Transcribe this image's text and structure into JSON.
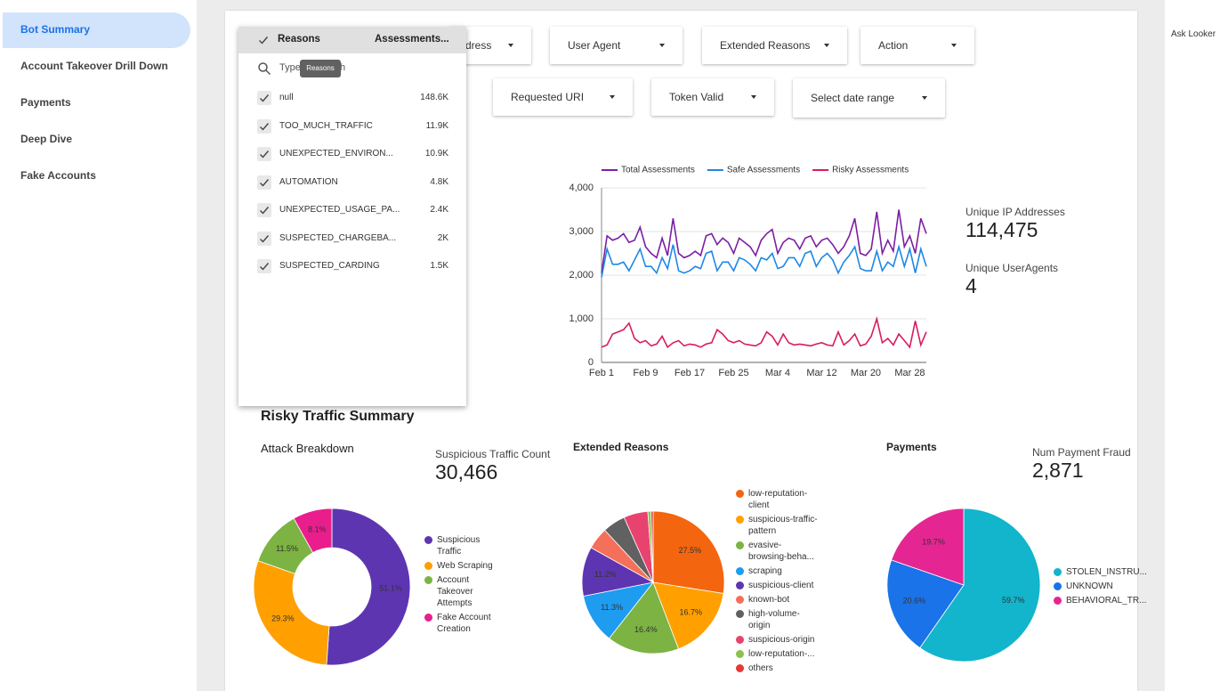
{
  "sidebar": {
    "items": [
      "Bot Summary",
      "Account Takeover Drill Down",
      "Payments",
      "Deep Dive",
      "Fake Accounts"
    ]
  },
  "ask_looker": "Ask Looker",
  "filters": [
    "dress",
    "User Agent",
    "Extended Reasons",
    "Action",
    "Requested URI",
    "Token Valid",
    "Select date range"
  ],
  "dropdown": {
    "header": "Reasons",
    "column": "Assessments...",
    "search": "Type",
    "search_tail": "h",
    "tooltip": "Reasons",
    "rows": [
      {
        "label": "null",
        "value": "148.6K"
      },
      {
        "label": "TOO_MUCH_TRAFFIC",
        "value": "11.9K"
      },
      {
        "label": "UNEXPECTED_ENVIRON...",
        "value": "10.9K"
      },
      {
        "label": "AUTOMATION",
        "value": "4.8K"
      },
      {
        "label": "UNEXPECTED_USAGE_PA...",
        "value": "2.4K"
      },
      {
        "label": "SUSPECTED_CHARGEBA...",
        "value": "2K"
      },
      {
        "label": "SUSPECTED_CARDING",
        "value": "1.5K"
      }
    ]
  },
  "stats": [
    {
      "label": "Unique IP Addresses",
      "value": "114,475"
    },
    {
      "label": "Unique UserAgents",
      "value": "4"
    }
  ],
  "section_title": "Risky Traffic Summary",
  "scorecards": [
    {
      "label": "Suspicious Traffic Count",
      "value": "30,466"
    },
    {
      "label": "Num Payment Fraud",
      "value": "2,871"
    }
  ],
  "chart_data": [
    {
      "type": "line",
      "categories": [
        "Feb 1",
        null,
        null,
        null,
        null,
        null,
        null,
        null,
        "Feb 9",
        null,
        null,
        null,
        null,
        null,
        null,
        null,
        "Feb 17",
        null,
        null,
        null,
        null,
        null,
        null,
        null,
        "Feb 25",
        null,
        null,
        null,
        null,
        null,
        null,
        null,
        "Mar 4",
        null,
        null,
        null,
        null,
        null,
        null,
        null,
        "Mar 12",
        null,
        null,
        null,
        null,
        null,
        null,
        null,
        "Mar 20",
        null,
        null,
        null,
        null,
        null,
        null,
        null,
        "Mar 28",
        null,
        null,
        null
      ],
      "ylim": [
        0,
        4000
      ],
      "yticks": [
        0,
        {
          "value": 1000,
          "label": "1,000"
        },
        {
          "value": 2000,
          "label": "2,000"
        },
        {
          "value": 3000,
          "label": "3,000"
        },
        {
          "value": 4000,
          "label": "4,000"
        }
      ],
      "grid": true,
      "series": [
        {
          "name": "Total Assessments",
          "color": "#7b1fa2",
          "values": [
            2050,
            2900,
            2800,
            2850,
            2950,
            2750,
            2800,
            3100,
            2650,
            2500,
            2400,
            2850,
            2450,
            3300,
            2500,
            2400,
            2450,
            2550,
            2450,
            2900,
            2950,
            2700,
            2850,
            2750,
            2500,
            2850,
            2750,
            2650,
            2450,
            2800,
            2950,
            3050,
            2500,
            2750,
            2850,
            2800,
            2600,
            2850,
            2900,
            2650,
            2800,
            2850,
            2700,
            2500,
            2650,
            2900,
            3300,
            2500,
            2450,
            2600,
            3450,
            2500,
            2800,
            2550,
            3500,
            2650,
            2900,
            2500,
            3300,
            2950
          ]
        },
        {
          "name": "Safe Assessments",
          "color": "#1e88e5",
          "values": [
            1950,
            2600,
            2250,
            2250,
            2300,
            2100,
            2350,
            2600,
            2200,
            2200,
            2050,
            2400,
            2150,
            2700,
            2100,
            2050,
            2100,
            2200,
            2150,
            2500,
            2550,
            2100,
            2300,
            2300,
            2100,
            2400,
            2350,
            2250,
            2100,
            2400,
            2350,
            2500,
            2150,
            2200,
            2400,
            2400,
            2200,
            2500,
            2550,
            2200,
            2400,
            2500,
            2350,
            2050,
            2300,
            2450,
            2650,
            2150,
            2100,
            2100,
            2550,
            2100,
            2300,
            2200,
            2650,
            2200,
            2600,
            2050,
            2600,
            2200
          ]
        },
        {
          "name": "Risky Assessments",
          "color": "#d81b60",
          "values": [
            350,
            400,
            650,
            700,
            750,
            900,
            550,
            450,
            500,
            380,
            420,
            600,
            350,
            450,
            500,
            380,
            420,
            400,
            350,
            420,
            450,
            750,
            650,
            500,
            450,
            500,
            420,
            400,
            380,
            450,
            700,
            600,
            400,
            650,
            450,
            400,
            420,
            400,
            380,
            420,
            450,
            400,
            380,
            700,
            400,
            500,
            650,
            380,
            420,
            600,
            1000,
            450,
            550,
            400,
            650,
            500,
            350,
            950,
            400,
            700
          ]
        }
      ]
    },
    {
      "type": "pie",
      "donut": true,
      "title": "Attack Breakdown",
      "categories": [
        "Suspicious Traffic",
        "Web Scraping",
        "Account Takeover Attempts",
        "Fake Account Creation"
      ],
      "values": [
        51.1,
        29.3,
        11.5,
        8.1
      ],
      "value_labels": [
        "51.1%",
        "29.3%",
        "11.5%",
        "8.1%"
      ],
      "colors": [
        "#5e35b1",
        "#ffa000",
        "#7cb342",
        "#e91e8c"
      ]
    },
    {
      "type": "pie",
      "title": "Extended Reasons",
      "categories": [
        "low-reputation-client",
        "suspicious-traffic-pattern",
        "evasive-browsing-beha...",
        "scraping",
        "suspicious-client",
        "known-bot",
        "high-volume-origin",
        "suspicious-origin",
        "low-reputation-...",
        "others"
      ],
      "values": [
        27.5,
        16.7,
        16.4,
        11.3,
        11.2,
        5.0,
        5.2,
        5.5,
        0.7,
        0.5
      ],
      "value_labels": [
        "27.5%",
        "16.7%",
        "16.4%",
        "11.3%",
        "11.2%",
        null,
        null,
        null,
        null,
        null
      ],
      "colors": [
        "#f4650f",
        "#ffa000",
        "#7cb342",
        "#1e9cf0",
        "#5e35b1",
        "#f4705a",
        "#616161",
        "#e8436e",
        "#8bc34a",
        "#e53935"
      ]
    },
    {
      "type": "pie",
      "title": "Payments",
      "categories": [
        "STOLEN_INSTRU...",
        "UNKNOWN",
        "BEHAVIORAL_TR..."
      ],
      "values": [
        59.7,
        20.6,
        19.7
      ],
      "value_labels": [
        "59.7%",
        "20.6%",
        "19.7%"
      ],
      "colors": [
        "#12b5cb",
        "#1a73e8",
        "#e52592"
      ]
    }
  ]
}
